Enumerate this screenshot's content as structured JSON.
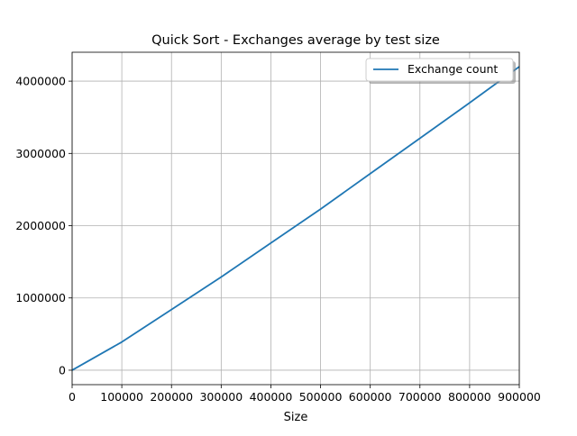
{
  "chart_data": {
    "type": "line",
    "title": "Quick Sort - Exchanges average by test size",
    "xlabel": "Size",
    "ylabel": "",
    "xlim": [
      0,
      900000
    ],
    "ylim": [
      -200000,
      4400000
    ],
    "xticks": [
      0,
      100000,
      200000,
      300000,
      400000,
      500000,
      600000,
      700000,
      800000,
      900000
    ],
    "yticks": [
      0,
      1000000,
      2000000,
      3000000,
      4000000
    ],
    "grid": true,
    "legend": "top-right",
    "series": [
      {
        "name": "Exchange count",
        "color": "#1f77b4",
        "x": [
          0,
          100000,
          200000,
          300000,
          400000,
          500000,
          600000,
          700000,
          800000,
          900000
        ],
        "y": [
          0,
          390000,
          840000,
          1290000,
          1760000,
          2230000,
          2720000,
          3210000,
          3700000,
          4200000
        ]
      }
    ]
  }
}
